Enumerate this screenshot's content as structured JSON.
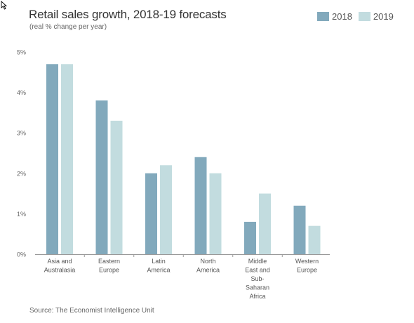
{
  "chart_data": {
    "type": "bar",
    "title": "Retail sales growth, 2018-19 forecasts",
    "subtitle": "(real % change per year)",
    "categories": [
      [
        "Asia and",
        "Australasia"
      ],
      [
        "Eastern",
        "Europe"
      ],
      [
        "Latin",
        "America"
      ],
      [
        "North",
        "America"
      ],
      [
        "Middle",
        "East and",
        "Sub-",
        "Saharan",
        "Africa"
      ],
      [
        "Western",
        "Europe"
      ]
    ],
    "series": [
      {
        "name": "2018",
        "color": "#82a9bc",
        "values": [
          4.7,
          3.8,
          2.0,
          2.4,
          0.8,
          1.2
        ]
      },
      {
        "name": "2019",
        "color": "#c2dcdf",
        "values": [
          4.7,
          3.3,
          2.2,
          2.0,
          1.5,
          0.7
        ]
      }
    ],
    "yticks": [
      "0%",
      "1%",
      "2%",
      "3%",
      "4%",
      "5%"
    ],
    "ylim": [
      0,
      5
    ],
    "legend_position": "top-right",
    "grid": false,
    "source": "Source: The Economist Intelligence Unit"
  }
}
